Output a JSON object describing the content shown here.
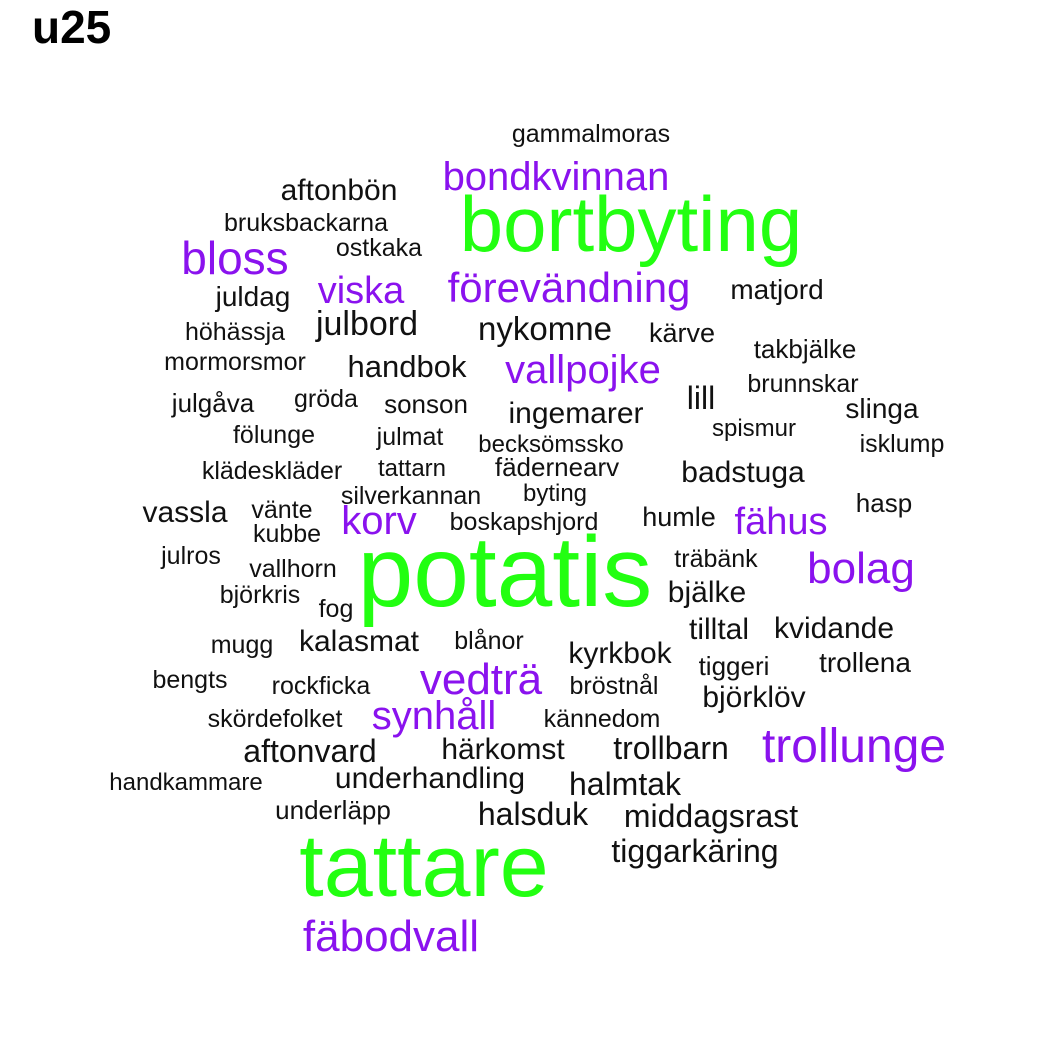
{
  "title": "u25",
  "colors": {
    "large": "#22ff11",
    "medium": "#8a12ee",
    "small": "#111111"
  },
  "words": [
    {
      "text": "gammalmoras",
      "tier": "small"
    },
    {
      "text": "bondkvinnan",
      "tier": "medium"
    },
    {
      "text": "aftonbön",
      "tier": "small"
    },
    {
      "text": "bortbyting",
      "tier": "large"
    },
    {
      "text": "bruksbackarna",
      "tier": "small"
    },
    {
      "text": "bloss",
      "tier": "medium"
    },
    {
      "text": "ostkaka",
      "tier": "small"
    },
    {
      "text": "viska",
      "tier": "medium"
    },
    {
      "text": "förevändning",
      "tier": "medium"
    },
    {
      "text": "juldag",
      "tier": "small"
    },
    {
      "text": "matjord",
      "tier": "small"
    },
    {
      "text": "julbord",
      "tier": "small"
    },
    {
      "text": "höhässja",
      "tier": "small"
    },
    {
      "text": "nykomne",
      "tier": "small"
    },
    {
      "text": "kärve",
      "tier": "small"
    },
    {
      "text": "takbjälke",
      "tier": "small"
    },
    {
      "text": "mormorsmor",
      "tier": "small"
    },
    {
      "text": "handbok",
      "tier": "small"
    },
    {
      "text": "vallpojke",
      "tier": "medium"
    },
    {
      "text": "brunnskar",
      "tier": "small"
    },
    {
      "text": "lill",
      "tier": "small"
    },
    {
      "text": "julgåva",
      "tier": "small"
    },
    {
      "text": "gröda",
      "tier": "small"
    },
    {
      "text": "sonson",
      "tier": "small"
    },
    {
      "text": "ingemarer",
      "tier": "small"
    },
    {
      "text": "slinga",
      "tier": "small"
    },
    {
      "text": "spismur",
      "tier": "small"
    },
    {
      "text": "fölunge",
      "tier": "small"
    },
    {
      "text": "julmat",
      "tier": "small"
    },
    {
      "text": "becksömssko",
      "tier": "small"
    },
    {
      "text": "isklump",
      "tier": "small"
    },
    {
      "text": "klädeskläder",
      "tier": "small"
    },
    {
      "text": "tattarn",
      "tier": "small"
    },
    {
      "text": "fädernearv",
      "tier": "small"
    },
    {
      "text": "badstuga",
      "tier": "small"
    },
    {
      "text": "silverkannan",
      "tier": "small"
    },
    {
      "text": "byting",
      "tier": "small"
    },
    {
      "text": "hasp",
      "tier": "small"
    },
    {
      "text": "vassla",
      "tier": "small"
    },
    {
      "text": "vänte",
      "tier": "small"
    },
    {
      "text": "korv",
      "tier": "medium"
    },
    {
      "text": "boskapshjord",
      "tier": "small"
    },
    {
      "text": "humle",
      "tier": "small"
    },
    {
      "text": "fähus",
      "tier": "medium"
    },
    {
      "text": "kubbe",
      "tier": "small"
    },
    {
      "text": "julros",
      "tier": "small"
    },
    {
      "text": "träbänk",
      "tier": "small"
    },
    {
      "text": "vallhorn",
      "tier": "small"
    },
    {
      "text": "potatis",
      "tier": "large"
    },
    {
      "text": "bolag",
      "tier": "medium"
    },
    {
      "text": "björkris",
      "tier": "small"
    },
    {
      "text": "bjälke",
      "tier": "small"
    },
    {
      "text": "fog",
      "tier": "small"
    },
    {
      "text": "tilltal",
      "tier": "small"
    },
    {
      "text": "kvidande",
      "tier": "small"
    },
    {
      "text": "mugg",
      "tier": "small"
    },
    {
      "text": "kalasmat",
      "tier": "small"
    },
    {
      "text": "blånor",
      "tier": "small"
    },
    {
      "text": "kyrkbok",
      "tier": "small"
    },
    {
      "text": "tiggeri",
      "tier": "small"
    },
    {
      "text": "trollena",
      "tier": "small"
    },
    {
      "text": "bengts",
      "tier": "small"
    },
    {
      "text": "rockficka",
      "tier": "small"
    },
    {
      "text": "vedträ",
      "tier": "medium"
    },
    {
      "text": "bröstnål",
      "tier": "small"
    },
    {
      "text": "björklöv",
      "tier": "small"
    },
    {
      "text": "skördefolket",
      "tier": "small"
    },
    {
      "text": "synhåll",
      "tier": "medium"
    },
    {
      "text": "kännedom",
      "tier": "small"
    },
    {
      "text": "aftonvard",
      "tier": "small"
    },
    {
      "text": "härkomst",
      "tier": "small"
    },
    {
      "text": "trollbarn",
      "tier": "small"
    },
    {
      "text": "trollunge",
      "tier": "medium"
    },
    {
      "text": "handkammare",
      "tier": "small"
    },
    {
      "text": "underhandling",
      "tier": "small"
    },
    {
      "text": "halmtak",
      "tier": "small"
    },
    {
      "text": "underläpp",
      "tier": "small"
    },
    {
      "text": "halsduk",
      "tier": "small"
    },
    {
      "text": "middagsrast",
      "tier": "small"
    },
    {
      "text": "tattare",
      "tier": "large"
    },
    {
      "text": "tiggarkäring",
      "tier": "small"
    },
    {
      "text": "fäbodvall",
      "tier": "medium"
    }
  ]
}
